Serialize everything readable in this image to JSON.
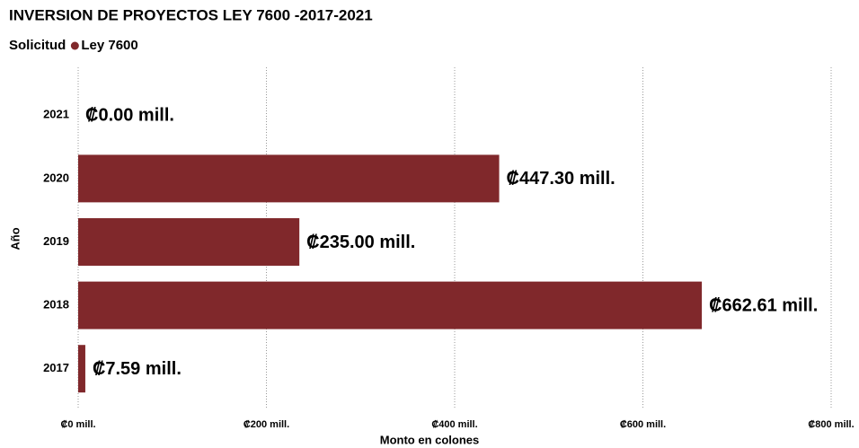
{
  "chart_data": {
    "type": "bar",
    "orientation": "horizontal",
    "title": "INVERSION DE PROYECTOS LEY 7600 -2017-2021",
    "legend_title": "Solicitud",
    "x_label": "Monto en colones",
    "y_label": "Año",
    "categories": [
      "2021",
      "2020",
      "2019",
      "2018",
      "2017"
    ],
    "series": [
      {
        "name": "Ley 7600",
        "color": "#80282b",
        "values": [
          0,
          447.3,
          235.0,
          662.61,
          7.59
        ],
        "value_labels": [
          "₡0.00 mill.",
          "₡447.30 mill.",
          "₡235.00 mill.",
          "₡662.61 mill.",
          "₡7.59 mill."
        ]
      }
    ],
    "xlim": [
      0,
      800
    ],
    "xticks": [
      {
        "value": 0,
        "label": "₡0 mill."
      },
      {
        "value": 200,
        "label": "₡200 mill."
      },
      {
        "value": 400,
        "label": "₡400 mill."
      },
      {
        "value": 600,
        "label": "₡600 mill."
      },
      {
        "value": 800,
        "label": "₡800 mill."
      }
    ],
    "grid": true
  }
}
